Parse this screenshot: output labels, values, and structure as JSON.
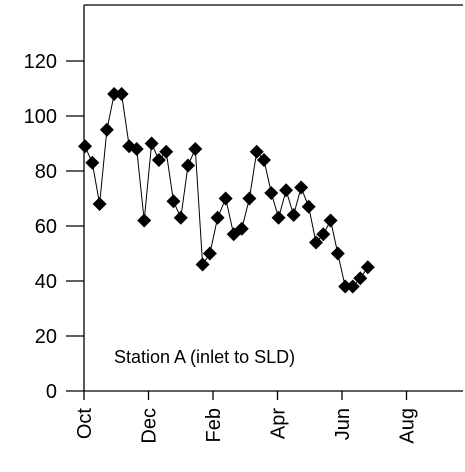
{
  "chart_data": {
    "type": "line",
    "title": "",
    "xlabel": "",
    "ylabel": "",
    "annotation": "Station A (inlet to SLD)",
    "x_tick_labels": [
      "Oct",
      "Dec",
      "Feb",
      "Apr",
      "Jun",
      "Aug"
    ],
    "y_tick_labels": [
      "0",
      "20",
      "40",
      "60",
      "80",
      "100",
      "120"
    ],
    "yticks": [
      0,
      20,
      40,
      60,
      80,
      100,
      120
    ],
    "ylim": [
      0,
      130
    ],
    "xlim": [
      "Oct 1",
      "Oct 1 (following year)"
    ],
    "grid": false,
    "marker": "diamond",
    "series": [
      {
        "x": [
          "Oct 2",
          "Oct 9",
          "Oct 16",
          "Oct 23",
          "Oct 30",
          "Nov 6",
          "Nov 13",
          "Nov 20",
          "Nov 27",
          "Dec 4",
          "Dec 11",
          "Dec 18",
          "Dec 25",
          "Jan 1",
          "Jan 8",
          "Jan 15",
          "Jan 22",
          "Jan 29",
          "Feb 5",
          "Feb 12",
          "Feb 19",
          "Feb 26",
          "Mar 5",
          "Mar 12",
          "Mar 19",
          "Mar 26",
          "Apr 2",
          "Apr 9",
          "Apr 16",
          "Apr 23",
          "Apr 30",
          "May 7",
          "May 14",
          "May 21",
          "May 28",
          "Jun 4",
          "Jun 11",
          "Jun 18",
          "Jun 25"
        ],
        "values": [
          89,
          83,
          68,
          95,
          108,
          108,
          89,
          88,
          62,
          90,
          84,
          87,
          69,
          63,
          82,
          88,
          46,
          50,
          63,
          70,
          57,
          59,
          70,
          87,
          84,
          72,
          63,
          73,
          64,
          74,
          67,
          54,
          57,
          62,
          50,
          38,
          38,
          41,
          45
        ]
      }
    ]
  }
}
